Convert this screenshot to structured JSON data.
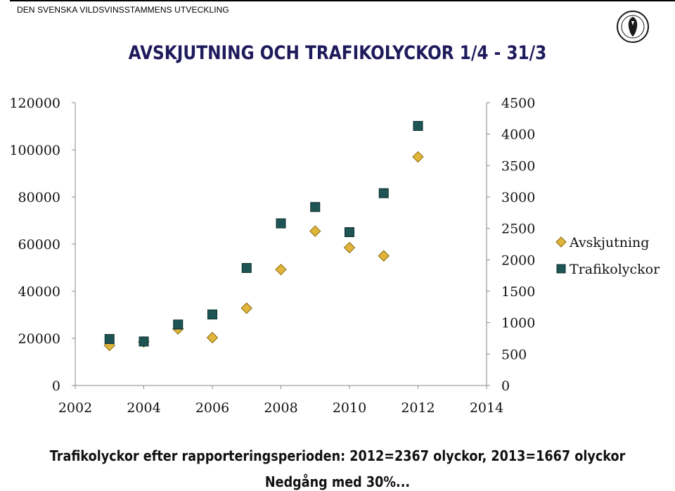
{
  "header": {
    "organization": "DEN SVENSKA VILDSVINSSTAMMENS UTVECKLING",
    "logo_icon": "boar-emblem-icon"
  },
  "colors": {
    "title": "#1f1a5c",
    "diamond_fill": "#e0b53a",
    "diamond_stroke": "#8a6a12",
    "square_fill": "#1e5454",
    "square_stroke": "#0c2c2c"
  },
  "chart_data": {
    "type": "scatter",
    "title": "AVSKJUTNING OCH TRAFIKOLYCKOR 1/4 - 31/3",
    "xlim": [
      2002,
      2014
    ],
    "x_ticks": [
      "2002",
      "2004",
      "2006",
      "2008",
      "2010",
      "2012",
      "2014"
    ],
    "ylim_left": [
      0,
      120000
    ],
    "y_ticks_left": [
      "0",
      "20000",
      "40000",
      "60000",
      "80000",
      "100000",
      "120000"
    ],
    "ylim_right": [
      0,
      4500
    ],
    "y_ticks_right": [
      "0",
      "500",
      "1000",
      "1500",
      "2000",
      "2500",
      "3000",
      "3500",
      "4000",
      "4500"
    ],
    "grid": false,
    "legend_position": "right",
    "series": [
      {
        "name": "Avskjutning",
        "axis": "left",
        "marker": "diamond",
        "x": [
          2003,
          2004,
          2005,
          2006,
          2007,
          2008,
          2009,
          2010,
          2011,
          2012
        ],
        "y": [
          17000,
          18500,
          24000,
          20300,
          32800,
          49200,
          65500,
          58500,
          55000,
          97000
        ]
      },
      {
        "name": "Trafikolyckor",
        "axis": "right",
        "marker": "square",
        "x": [
          2003,
          2004,
          2005,
          2006,
          2007,
          2008,
          2009,
          2010,
          2011,
          2012
        ],
        "y": [
          740,
          700,
          970,
          1130,
          1870,
          2580,
          2840,
          2440,
          3060,
          4130
        ]
      }
    ]
  },
  "notes": {
    "line1": "Trafikolyckor efter rapporteringsperioden: 2012=2367 olyckor, 2013=1667 olyckor",
    "line2": "Nedgång med 30%..."
  }
}
